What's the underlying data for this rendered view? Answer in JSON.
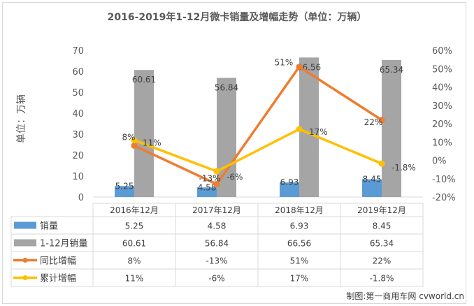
{
  "chart_data": {
    "type": "bar+line",
    "title": "2016-2019年1-12月微卡销量及增幅走势（单位：万辆）",
    "ylabel": "单位：万辆",
    "categories": [
      "2016年12月",
      "2017年12月",
      "2018年12月",
      "2019年12月"
    ],
    "ylim": [
      0,
      70
    ],
    "yticks": [
      "0",
      "10",
      "20",
      "30",
      "40",
      "50",
      "60",
      "70"
    ],
    "y2lim": [
      -20,
      60
    ],
    "y2ticks": [
      "-20%",
      "-10%",
      "0%",
      "10%",
      "20%",
      "30%",
      "40%",
      "50%",
      "60%"
    ],
    "series": [
      {
        "name": "销量",
        "kind": "bar",
        "axis": "left",
        "color": "#5b9bd5",
        "values": [
          5.25,
          4.58,
          6.93,
          8.45
        ],
        "labels": [
          "5.25",
          "4.58",
          "6.93",
          "8.45"
        ]
      },
      {
        "name": "1-12月销量",
        "kind": "bar",
        "axis": "left",
        "color": "#a5a5a5",
        "values": [
          60.61,
          56.84,
          66.56,
          65.34
        ],
        "labels": [
          "60.61",
          "56.84",
          "66.56",
          "65.34"
        ]
      },
      {
        "name": "同比增幅",
        "kind": "line",
        "axis": "right",
        "color": "#ed7d31",
        "values": [
          8,
          -13,
          51,
          22
        ],
        "labels": [
          "8%",
          "-13%",
          "51%",
          "22%"
        ]
      },
      {
        "name": "累计增幅",
        "kind": "line",
        "axis": "right",
        "color": "#ffc000",
        "values": [
          11,
          -6,
          17,
          -1.8
        ],
        "labels": [
          "11%",
          "-6%",
          "17%",
          "-1.8%"
        ]
      }
    ],
    "legend": "data-table"
  },
  "credit": "制图:第一商用车网 cvworld.cn"
}
